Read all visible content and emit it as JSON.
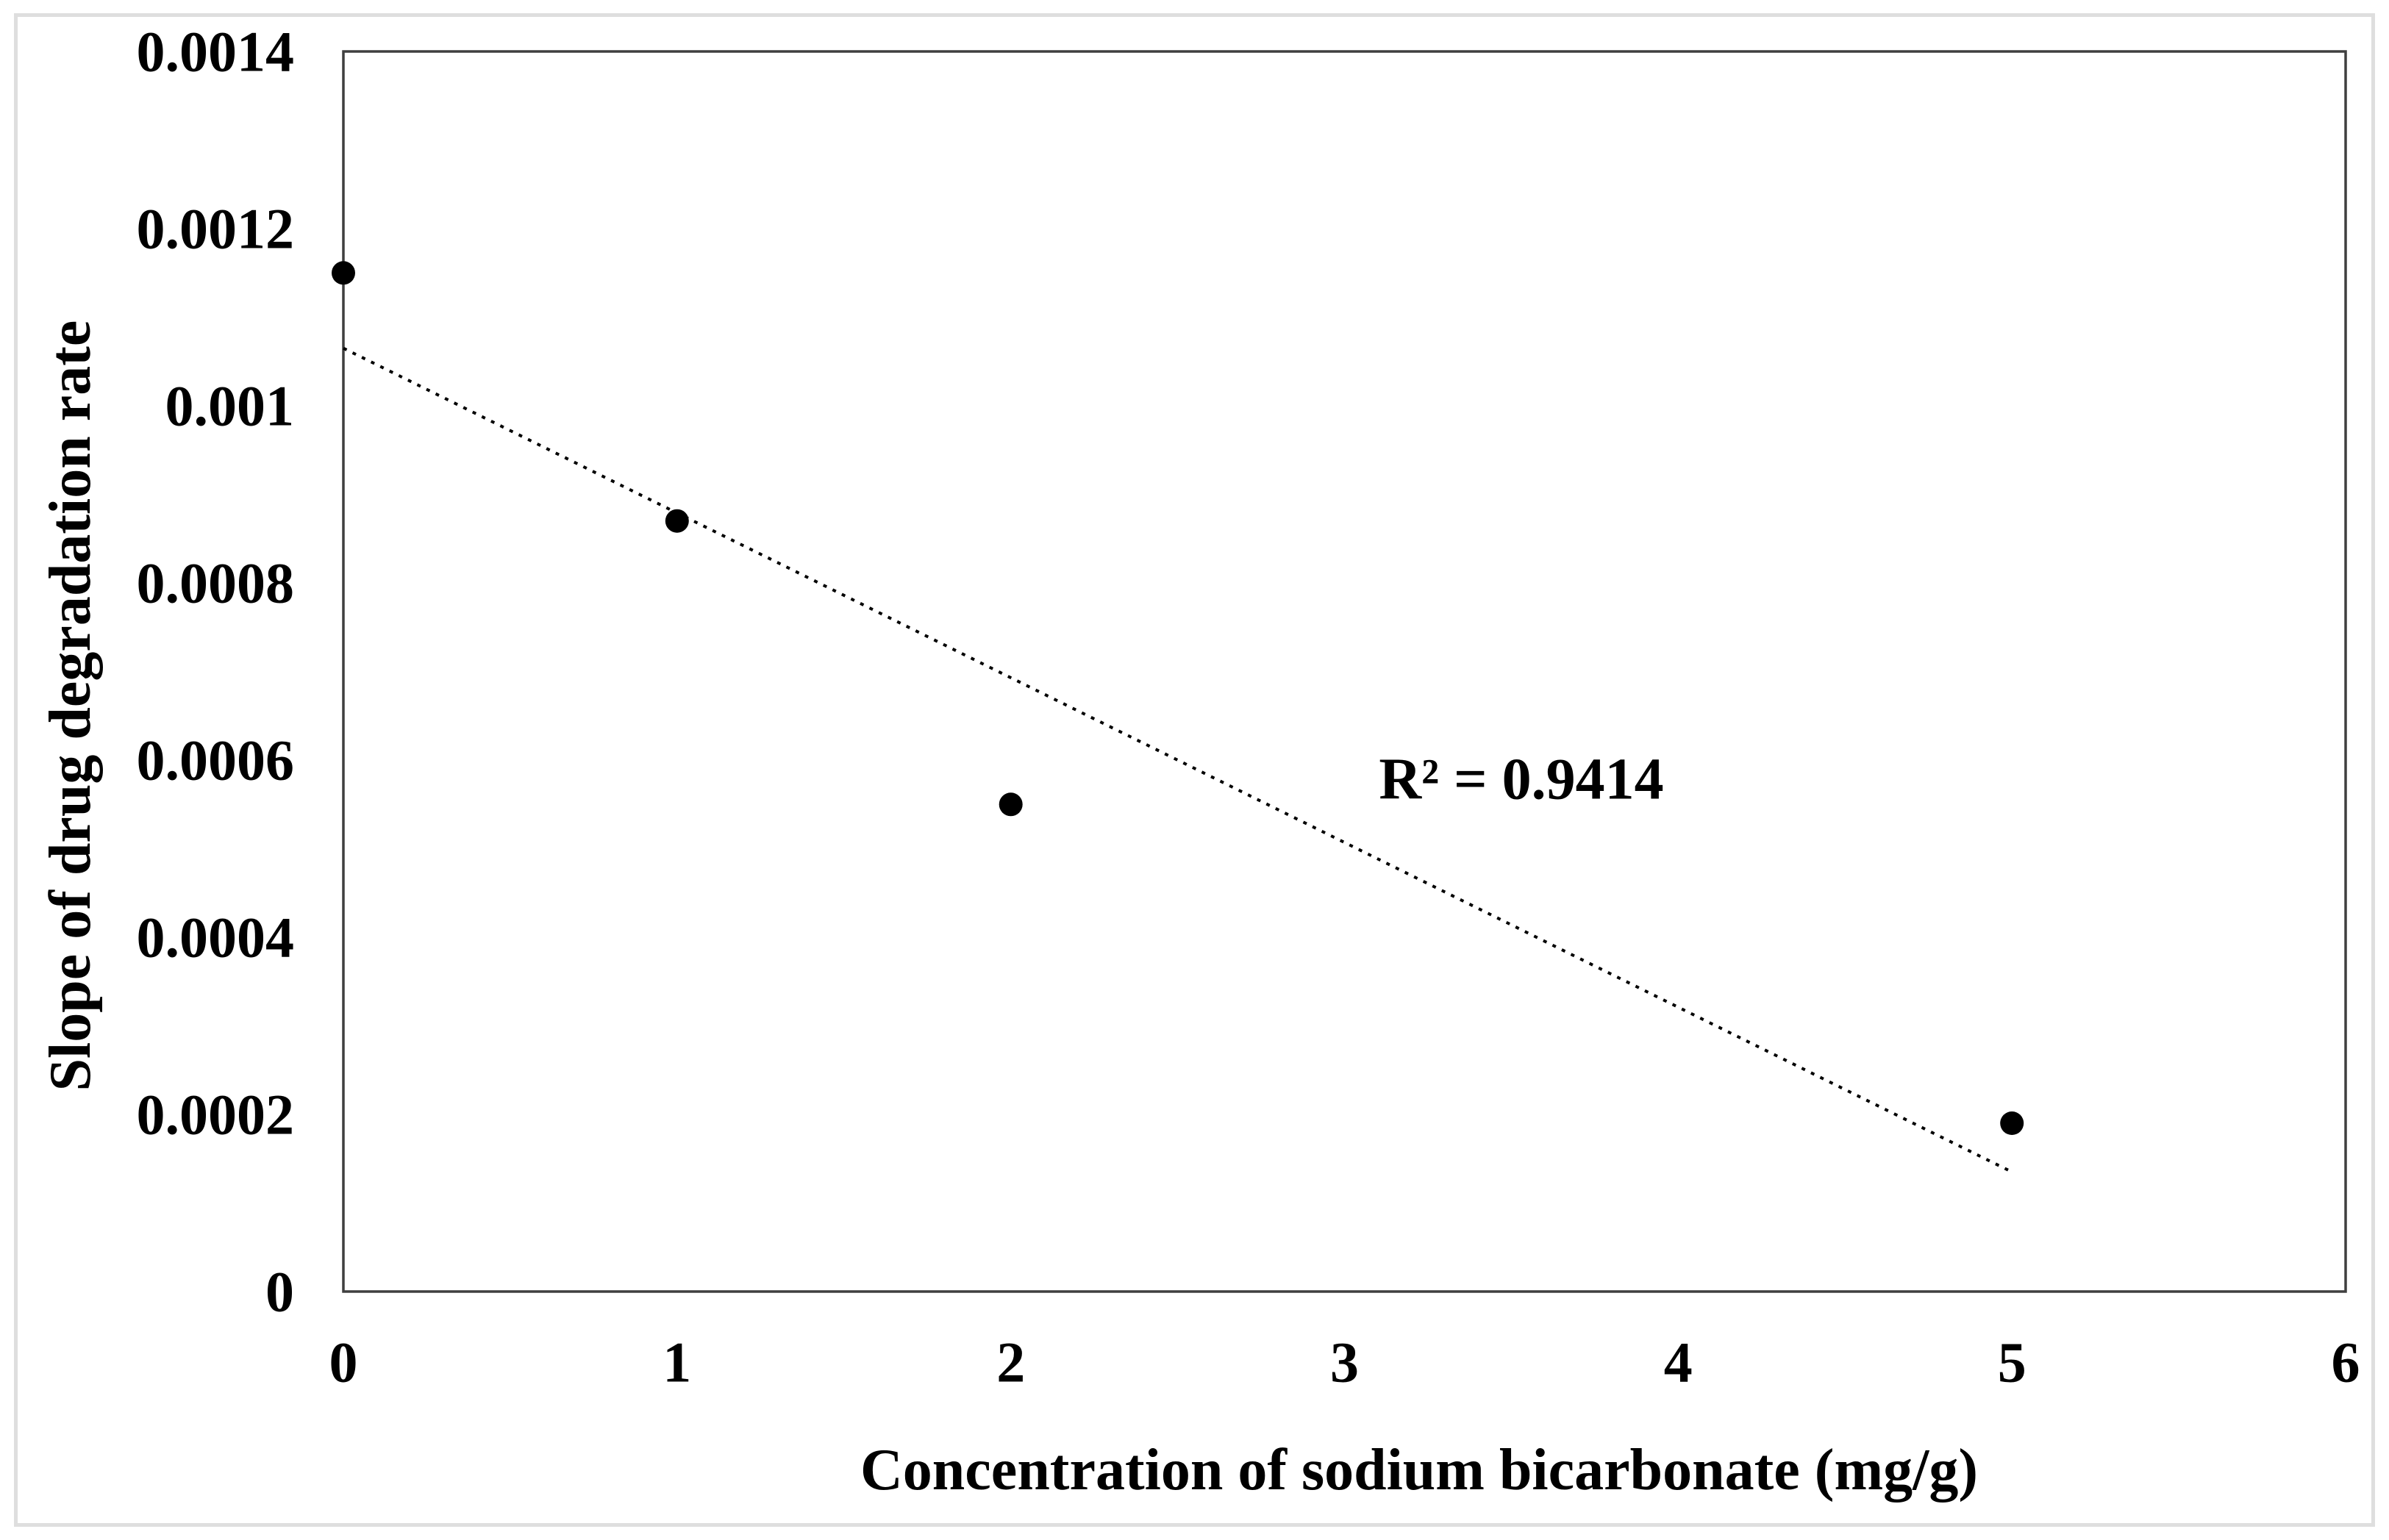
{
  "figure": {
    "background_color": "#ffffff",
    "frame_color": "#dedede",
    "plot_border_color": "#3f3f3f"
  },
  "chart_data": {
    "type": "scatter",
    "title": "",
    "xlabel": "Concentration of sodium bicarbonate (mg/g)",
    "ylabel": "Slope of drug degradation rate",
    "x": [
      0,
      1,
      2,
      5
    ],
    "y": [
      0.00115,
      0.00087,
      0.00055,
      0.00019
    ],
    "xlim": [
      0,
      6
    ],
    "ylim": [
      0,
      0.0014
    ],
    "x_ticks": [
      0,
      1,
      2,
      3,
      4,
      5,
      6
    ],
    "x_tick_labels": [
      "0",
      "1",
      "2",
      "3",
      "4",
      "5",
      "6"
    ],
    "y_ticks": [
      0,
      0.0002,
      0.0004,
      0.0006,
      0.0008,
      0.001,
      0.0012,
      0.0014
    ],
    "y_tick_labels": [
      "0",
      "0.0002",
      "0.0004",
      "0.0006",
      "0.0008",
      "0.001",
      "0.0012",
      "0.0014"
    ],
    "grid": false,
    "legend": false,
    "marker": {
      "shape": "circle",
      "color": "#000000",
      "radius_px": 16
    },
    "trendline": {
      "style": "dotted",
      "color": "#000000",
      "start": {
        "x": 0,
        "y": 0.001065
      },
      "end": {
        "x": 5,
        "y": 0.000135
      }
    },
    "annotation": "R² = 0.9414",
    "annotation_pos": {
      "x": 3.53,
      "y": 0.000578
    }
  }
}
